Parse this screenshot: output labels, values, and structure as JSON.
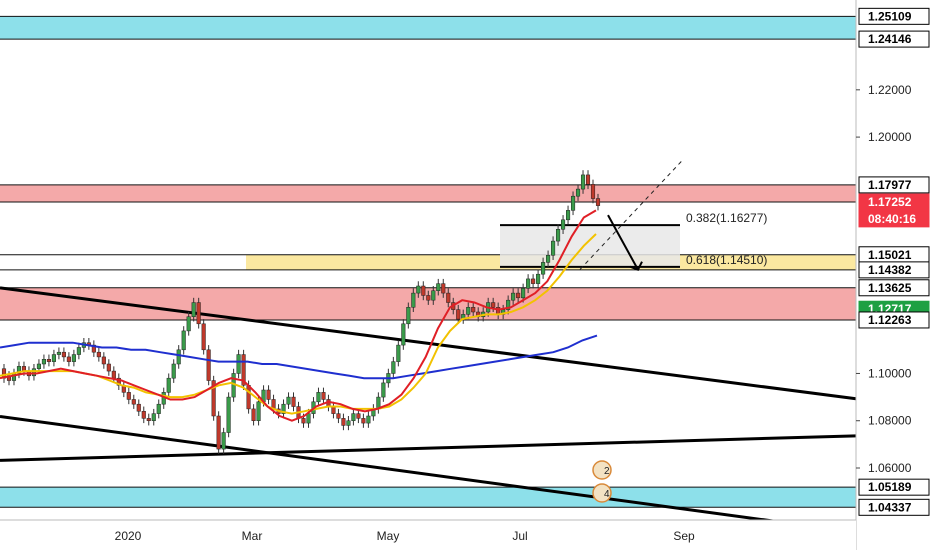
{
  "chart_data": {
    "type": "candlestick",
    "instrument_hint": "EURUSD daily",
    "ylim": [
      1.038,
      1.258
    ],
    "y_ticks": [
      "1.22000",
      "1.20000",
      "1.10000",
      "1.08000",
      "1.06000"
    ],
    "x_ticks": [
      "2020",
      "Mar",
      "May",
      "Jul",
      "Sep"
    ],
    "price_labels": [
      {
        "text": "1.25109",
        "value": 1.25109,
        "style": "boxed"
      },
      {
        "text": "1.24146",
        "value": 1.24146,
        "style": "boxed"
      },
      {
        "text": "1.17977",
        "value": 1.17977,
        "style": "boxed"
      },
      {
        "text": "1.17252",
        "value": 1.17252,
        "style": "red"
      },
      {
        "text": "08:40:16",
        "value": 1.1654,
        "style": "red"
      },
      {
        "text": "1.15021",
        "value": 1.15021,
        "style": "boxed"
      },
      {
        "text": "1.14382",
        "value": 1.14382,
        "style": "boxed"
      },
      {
        "text": "1.13625",
        "value": 1.13625,
        "style": "boxed"
      },
      {
        "text": "1.12717",
        "value": 1.12717,
        "style": "green"
      },
      {
        "text": "1.12263",
        "value": 1.12263,
        "style": "boxed"
      },
      {
        "text": "1.05189",
        "value": 1.05189,
        "style": "boxed"
      },
      {
        "text": "1.04337",
        "value": 1.04337,
        "style": "boxed"
      }
    ],
    "zones": [
      {
        "name": "top-cyan-zone",
        "from": 1.24146,
        "to": 1.25109,
        "color": "#8de0ea"
      },
      {
        "name": "upper-red-zone",
        "from": 1.17252,
        "to": 1.17977,
        "color": "#f4a9a9"
      },
      {
        "name": "yellow-zone",
        "from": 1.14382,
        "to": 1.15021,
        "color": "#fbe8a0"
      },
      {
        "name": "lower-red-zone",
        "from": 1.12263,
        "to": 1.13625,
        "color": "#f4a9a9"
      },
      {
        "name": "bottom-cyan-zone",
        "from": 1.04337,
        "to": 1.05189,
        "color": "#8de0ea"
      }
    ],
    "fibonacci": [
      {
        "text": "0.382(1.16277)",
        "value": 1.16277
      },
      {
        "text": "0.618(1.14510)",
        "value": 1.1451
      }
    ],
    "projection": {
      "text": "",
      "from_value": 1.167,
      "to_value": 1.1439
    },
    "channel_lines": [
      [
        1.1362,
        1.0893
      ],
      [
        1.0818,
        1.0328
      ],
      [
        1.0632,
        1.0736
      ]
    ],
    "moving_averages": {
      "red": [
        1.098,
        1.099,
        1.1,
        1.1,
        1.101,
        1.102,
        1.101,
        1.1,
        1.099,
        1.098,
        1.097,
        1.095,
        1.093,
        1.091,
        1.089,
        1.089,
        1.09,
        1.093,
        1.096,
        1.098,
        1.097,
        1.092,
        1.086,
        1.082,
        1.08,
        1.082,
        1.086,
        1.088,
        1.087,
        1.085,
        1.084,
        1.085,
        1.087,
        1.091,
        1.098,
        1.107,
        1.119,
        1.128,
        1.131,
        1.13,
        1.128,
        1.127,
        1.128,
        1.131,
        1.134,
        1.139,
        1.148,
        1.158,
        1.166,
        1.169
      ],
      "yellow": [
        1.099,
        1.1,
        1.101,
        1.101,
        1.101,
        1.101,
        1.101,
        1.1,
        1.099,
        1.097,
        1.095,
        1.094,
        1.092,
        1.091,
        1.09,
        1.09,
        1.091,
        1.093,
        1.095,
        1.096,
        1.094,
        1.09,
        1.086,
        1.084,
        1.083,
        1.084,
        1.085,
        1.086,
        1.086,
        1.085,
        1.085,
        1.085,
        1.086,
        1.089,
        1.094,
        1.1,
        1.111,
        1.118,
        1.123,
        1.124,
        1.125,
        1.125,
        1.126,
        1.128,
        1.131,
        1.135,
        1.141,
        1.148,
        1.154,
        1.159
      ],
      "blue": [
        1.111,
        1.112,
        1.113,
        1.113,
        1.113,
        1.113,
        1.112,
        1.111,
        1.111,
        1.11,
        1.11,
        1.109,
        1.108,
        1.107,
        1.106,
        1.105,
        1.105,
        1.105,
        1.104,
        1.104,
        1.103,
        1.102,
        1.101,
        1.1,
        1.099,
        1.098,
        1.098,
        1.098,
        1.099,
        1.1,
        1.101,
        1.102,
        1.103,
        1.104,
        1.105,
        1.106,
        1.107,
        1.108,
        1.109,
        1.111,
        1.114,
        1.116
      ]
    },
    "candles": [
      [
        1.102,
        1.098
      ],
      [
        1.099,
        1.097
      ],
      [
        1.097,
        1.1
      ],
      [
        1.1,
        1.103
      ],
      [
        1.103,
        1.101
      ],
      [
        1.101,
        1.099
      ],
      [
        1.099,
        1.102
      ],
      [
        1.102,
        1.104
      ],
      [
        1.104,
        1.106
      ],
      [
        1.106,
        1.105
      ],
      [
        1.105,
        1.108
      ],
      [
        1.108,
        1.109
      ],
      [
        1.109,
        1.107
      ],
      [
        1.107,
        1.105
      ],
      [
        1.105,
        1.108
      ],
      [
        1.108,
        1.111
      ],
      [
        1.111,
        1.113
      ],
      [
        1.113,
        1.112
      ],
      [
        1.112,
        1.109
      ],
      [
        1.109,
        1.107
      ],
      [
        1.107,
        1.104
      ],
      [
        1.104,
        1.101
      ],
      [
        1.101,
        1.098
      ],
      [
        1.098,
        1.095
      ],
      [
        1.095,
        1.092
      ],
      [
        1.092,
        1.089
      ],
      [
        1.089,
        1.087
      ],
      [
        1.087,
        1.084
      ],
      [
        1.084,
        1.081
      ],
      [
        1.081,
        1.08
      ],
      [
        1.08,
        1.083
      ],
      [
        1.083,
        1.087
      ],
      [
        1.087,
        1.092
      ],
      [
        1.092,
        1.098
      ],
      [
        1.098,
        1.104
      ],
      [
        1.104,
        1.11
      ],
      [
        1.11,
        1.118
      ],
      [
        1.118,
        1.124
      ],
      [
        1.124,
        1.13
      ],
      [
        1.13,
        1.121
      ],
      [
        1.121,
        1.11
      ],
      [
        1.11,
        1.097
      ],
      [
        1.097,
        1.082
      ],
      [
        1.082,
        1.068
      ],
      [
        1.068,
        1.075
      ],
      [
        1.075,
        1.09
      ],
      [
        1.09,
        1.1
      ],
      [
        1.1,
        1.108
      ],
      [
        1.108,
        1.095
      ],
      [
        1.095,
        1.085
      ],
      [
        1.085,
        1.08
      ],
      [
        1.08,
        1.088
      ],
      [
        1.088,
        1.093
      ],
      [
        1.093,
        1.089
      ],
      [
        1.089,
        1.085
      ],
      [
        1.085,
        1.083
      ],
      [
        1.083,
        1.087
      ],
      [
        1.087,
        1.09
      ],
      [
        1.09,
        1.086
      ],
      [
        1.086,
        1.081
      ],
      [
        1.081,
        1.079
      ],
      [
        1.079,
        1.083
      ],
      [
        1.083,
        1.088
      ],
      [
        1.088,
        1.092
      ],
      [
        1.092,
        1.089
      ],
      [
        1.089,
        1.086
      ],
      [
        1.086,
        1.083
      ],
      [
        1.083,
        1.081
      ],
      [
        1.081,
        1.078
      ],
      [
        1.078,
        1.08
      ],
      [
        1.08,
        1.083
      ],
      [
        1.083,
        1.081
      ],
      [
        1.081,
        1.079
      ],
      [
        1.079,
        1.082
      ],
      [
        1.082,
        1.085
      ],
      [
        1.085,
        1.09
      ],
      [
        1.09,
        1.096
      ],
      [
        1.096,
        1.1
      ],
      [
        1.1,
        1.105
      ],
      [
        1.105,
        1.112
      ],
      [
        1.112,
        1.121
      ],
      [
        1.121,
        1.128
      ],
      [
        1.128,
        1.134
      ],
      [
        1.134,
        1.137
      ],
      [
        1.137,
        1.133
      ],
      [
        1.133,
        1.131
      ],
      [
        1.131,
        1.135
      ],
      [
        1.135,
        1.138
      ],
      [
        1.138,
        1.134
      ],
      [
        1.134,
        1.13
      ],
      [
        1.13,
        1.127
      ],
      [
        1.127,
        1.123
      ],
      [
        1.123,
        1.125
      ],
      [
        1.125,
        1.128
      ],
      [
        1.128,
        1.126
      ],
      [
        1.126,
        1.124
      ],
      [
        1.124,
        1.126
      ],
      [
        1.126,
        1.13
      ],
      [
        1.13,
        1.128
      ],
      [
        1.128,
        1.125
      ],
      [
        1.125,
        1.127
      ],
      [
        1.127,
        1.131
      ],
      [
        1.131,
        1.134
      ],
      [
        1.134,
        1.132
      ],
      [
        1.132,
        1.136
      ],
      [
        1.136,
        1.14
      ],
      [
        1.14,
        1.138
      ],
      [
        1.138,
        1.142
      ],
      [
        1.142,
        1.147
      ],
      [
        1.147,
        1.15
      ],
      [
        1.15,
        1.156
      ],
      [
        1.156,
        1.161
      ],
      [
        1.161,
        1.165
      ],
      [
        1.165,
        1.169
      ],
      [
        1.169,
        1.175
      ],
      [
        1.175,
        1.178
      ],
      [
        1.178,
        1.184
      ],
      [
        1.184,
        1.18
      ],
      [
        1.18,
        1.174
      ],
      [
        1.174,
        1.171
      ]
    ]
  }
}
